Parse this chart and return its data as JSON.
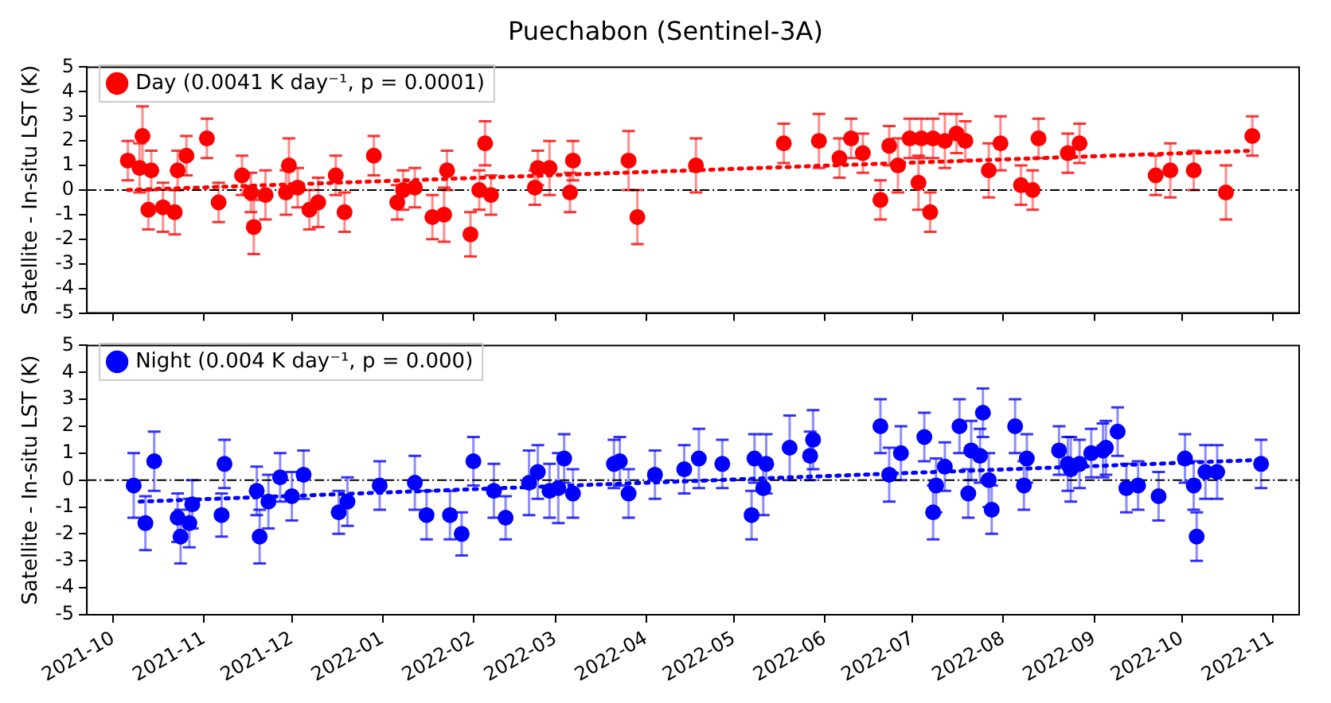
{
  "chart_data": [
    {
      "type": "scatter",
      "title": "Puechabon (Sentinel-3A)",
      "ylabel": "Satellite - In-situ LST (K)",
      "xlim": [
        "2021-09-22",
        "2022-11-10"
      ],
      "xticks": [
        "2021-10",
        "2021-11",
        "2021-12",
        "2022-01",
        "2022-02",
        "2022-03",
        "2022-04",
        "2022-05",
        "2022-06",
        "2022-07",
        "2022-08",
        "2022-09",
        "2022-10",
        "2022-11"
      ],
      "ylim": [
        -5,
        5
      ],
      "yticks": [
        -5,
        -4,
        -3,
        -2,
        -1,
        0,
        1,
        2,
        3,
        4,
        5
      ],
      "tick_labels": "y",
      "legend": "top left",
      "ref_lines": [
        {
          "axis": "y",
          "value": 0,
          "color": "#000000"
        }
      ],
      "series": [
        {
          "name": "Day (0.0041 K day⁻¹, p = 0.0001)",
          "color": "#ff0000",
          "marker": "circle",
          "x": [
            "2021-10-06",
            "2021-10-11",
            "2021-10-10",
            "2021-10-14",
            "2021-10-13",
            "2021-10-18",
            "2021-10-22",
            "2021-10-23",
            "2021-10-26",
            "2021-11-02",
            "2021-11-06",
            "2021-11-14",
            "2021-11-17",
            "2021-11-18",
            "2021-11-22",
            "2021-11-29",
            "2021-11-30",
            "2021-12-03",
            "2021-12-07",
            "2021-12-10",
            "2021-12-16",
            "2021-12-19",
            "2021-12-29",
            "2022-01-06",
            "2022-01-08",
            "2022-01-12",
            "2022-01-18",
            "2022-01-22",
            "2022-01-23",
            "2022-01-31",
            "2022-02-03",
            "2022-02-05",
            "2022-02-07",
            "2022-02-22",
            "2022-02-23",
            "2022-02-27",
            "2022-03-06",
            "2022-03-07",
            "2022-03-26",
            "2022-03-29",
            "2022-04-18",
            "2022-05-18",
            "2022-05-30",
            "2022-06-06",
            "2022-06-10",
            "2022-06-14",
            "2022-06-20",
            "2022-06-23",
            "2022-06-26",
            "2022-06-30",
            "2022-07-03",
            "2022-07-04",
            "2022-07-07",
            "2022-07-08",
            "2022-07-12",
            "2022-07-16",
            "2022-07-19",
            "2022-07-27",
            "2022-07-31",
            "2022-08-07",
            "2022-08-11",
            "2022-08-13",
            "2022-08-23",
            "2022-08-27",
            "2022-09-22",
            "2022-09-27",
            "2022-10-05",
            "2022-10-16",
            "2022-10-25"
          ],
          "values": [
            1.2,
            2.2,
            0.9,
            0.8,
            -0.8,
            -0.7,
            -0.9,
            0.8,
            1.4,
            2.1,
            -0.5,
            0.6,
            -0.1,
            -1.5,
            -0.2,
            -0.1,
            1.0,
            0.1,
            -0.8,
            -0.5,
            0.6,
            -0.9,
            1.4,
            -0.5,
            0.0,
            0.1,
            -1.1,
            -1.0,
            0.8,
            -1.8,
            0.0,
            1.9,
            -0.2,
            0.1,
            0.9,
            0.9,
            -0.1,
            1.2,
            1.2,
            -1.1,
            1.0,
            1.9,
            2.0,
            1.3,
            2.1,
            1.5,
            -0.4,
            1.8,
            1.0,
            2.1,
            0.3,
            2.1,
            -0.9,
            2.1,
            2.0,
            2.3,
            2.0,
            0.8,
            1.9,
            0.2,
            0.0,
            2.1,
            1.5,
            1.9,
            0.6,
            0.8,
            0.8,
            -0.1,
            2.2
          ],
          "errors": [
            0.8,
            1.2,
            1.0,
            0.8,
            0.8,
            1.0,
            0.9,
            0.8,
            0.8,
            0.8,
            0.8,
            0.8,
            0.8,
            1.1,
            1.0,
            0.9,
            1.1,
            0.8,
            0.8,
            1.0,
            0.8,
            0.8,
            0.8,
            0.7,
            0.8,
            0.8,
            0.9,
            1.1,
            0.8,
            0.9,
            0.8,
            0.9,
            0.8,
            0.7,
            0.7,
            1.1,
            0.8,
            0.8,
            1.2,
            1.1,
            1.1,
            0.8,
            1.1,
            0.8,
            0.8,
            0.8,
            0.8,
            0.8,
            1.1,
            0.8,
            1.1,
            0.8,
            0.8,
            0.8,
            1.1,
            0.8,
            0.8,
            1.1,
            1.1,
            0.8,
            0.8,
            0.8,
            0.8,
            0.8,
            0.8,
            1.1,
            0.8,
            1.1,
            0.8
          ]
        },
        {
          "type": "line",
          "color": "#ff0000",
          "line_style": "dotted",
          "marker": "none",
          "x": [
            "2021-10-06",
            "2022-10-25"
          ],
          "values": [
            0.0,
            1.6
          ]
        }
      ]
    },
    {
      "type": "scatter",
      "ylabel": "Satellite - In-situ LST (K)",
      "xlim": [
        "2021-09-22",
        "2022-11-10"
      ],
      "xticks": [
        "2021-10",
        "2021-11",
        "2021-12",
        "2022-01",
        "2022-02",
        "2022-03",
        "2022-04",
        "2022-05",
        "2022-06",
        "2022-07",
        "2022-08",
        "2022-09",
        "2022-10",
        "2022-11"
      ],
      "ylim": [
        -5,
        5
      ],
      "yticks": [
        -5,
        -4,
        -3,
        -2,
        -1,
        0,
        1,
        2,
        3,
        4,
        5
      ],
      "legend": "top left",
      "ref_lines": [
        {
          "axis": "y",
          "value": 0,
          "color": "#000000"
        }
      ],
      "series": [
        {
          "name": "Night (0.004 K day⁻¹, p = 0.000)",
          "color": "#0000ff",
          "marker": "circle",
          "x": [
            "2021-10-08",
            "2021-10-12",
            "2021-10-15",
            "2021-10-23",
            "2021-10-24",
            "2021-10-27",
            "2021-10-28",
            "2021-11-08",
            "2021-11-07",
            "2021-11-19",
            "2021-11-20",
            "2021-11-23",
            "2021-11-27",
            "2021-12-01",
            "2021-12-05",
            "2021-12-17",
            "2021-12-20",
            "2021-12-31",
            "2022-01-12",
            "2022-01-16",
            "2022-01-24",
            "2022-01-28",
            "2022-02-01",
            "2022-02-08",
            "2022-02-12",
            "2022-02-20",
            "2022-02-23",
            "2022-02-27",
            "2022-03-02",
            "2022-03-04",
            "2022-03-07",
            "2022-03-21",
            "2022-03-23",
            "2022-03-26",
            "2022-04-04",
            "2022-04-14",
            "2022-04-19",
            "2022-04-27",
            "2022-05-07",
            "2022-05-08",
            "2022-05-11",
            "2022-05-12",
            "2022-05-20",
            "2022-05-27",
            "2022-05-28",
            "2022-06-20",
            "2022-06-23",
            "2022-06-27",
            "2022-07-05",
            "2022-07-08",
            "2022-07-09",
            "2022-07-12",
            "2022-07-17",
            "2022-07-20",
            "2022-07-21",
            "2022-07-24",
            "2022-07-25",
            "2022-07-27",
            "2022-07-28",
            "2022-08-05",
            "2022-08-09",
            "2022-08-08",
            "2022-08-20",
            "2022-08-23",
            "2022-08-24",
            "2022-08-27",
            "2022-08-31",
            "2022-09-04",
            "2022-09-05",
            "2022-09-09",
            "2022-09-12",
            "2022-09-16",
            "2022-09-23",
            "2022-10-02",
            "2022-10-05",
            "2022-10-06",
            "2022-10-09",
            "2022-10-13",
            "2022-10-28"
          ],
          "values": [
            -0.2,
            -1.6,
            0.7,
            -1.4,
            -2.1,
            -1.6,
            -0.9,
            0.6,
            -1.3,
            -0.4,
            -2.1,
            -0.8,
            0.1,
            -0.6,
            0.2,
            -1.2,
            -0.8,
            -0.2,
            -0.1,
            -1.3,
            -1.3,
            -2.0,
            0.7,
            -0.4,
            -1.4,
            -0.1,
            0.3,
            -0.4,
            -0.3,
            0.8,
            -0.5,
            0.6,
            0.7,
            -0.5,
            0.2,
            0.4,
            0.8,
            0.6,
            -1.3,
            0.8,
            -0.3,
            0.6,
            1.2,
            0.9,
            1.5,
            2.0,
            0.2,
            1.0,
            1.6,
            -1.2,
            -0.2,
            0.5,
            2.0,
            -0.5,
            1.1,
            0.9,
            2.5,
            0.0,
            -1.1,
            2.0,
            0.8,
            -0.2,
            1.1,
            0.6,
            0.4,
            0.6,
            1.0,
            1.1,
            1.2,
            1.8,
            -0.3,
            -0.2,
            -0.6,
            0.8,
            -0.2,
            -2.1,
            0.3,
            0.3,
            0.6
          ],
          "errors": [
            1.2,
            1.0,
            1.1,
            0.9,
            1.0,
            0.9,
            0.9,
            0.9,
            0.8,
            0.9,
            1.0,
            1.0,
            0.9,
            0.9,
            0.9,
            0.8,
            0.9,
            0.9,
            1.0,
            0.9,
            0.9,
            0.8,
            0.9,
            1.0,
            0.8,
            1.2,
            1.0,
            1.0,
            1.3,
            0.9,
            0.9,
            0.9,
            0.9,
            0.9,
            0.9,
            0.9,
            1.1,
            0.9,
            0.9,
            0.9,
            1.0,
            1.1,
            1.2,
            0.9,
            1.1,
            1.0,
            1.0,
            1.0,
            0.9,
            1.0,
            1.0,
            0.9,
            1.0,
            0.9,
            1.1,
            1.0,
            0.9,
            1.0,
            0.9,
            1.0,
            0.9,
            0.9,
            0.9,
            1.0,
            1.2,
            0.9,
            0.9,
            1.0,
            1.0,
            0.9,
            0.9,
            0.9,
            0.9,
            0.9,
            0.9,
            0.9,
            1.0,
            1.0,
            0.9
          ]
        },
        {
          "type": "line",
          "color": "#0000ff",
          "line_style": "dotted",
          "marker": "none",
          "x": [
            "2021-10-10",
            "2022-10-28"
          ],
          "values": [
            -0.8,
            0.75
          ]
        }
      ]
    }
  ]
}
